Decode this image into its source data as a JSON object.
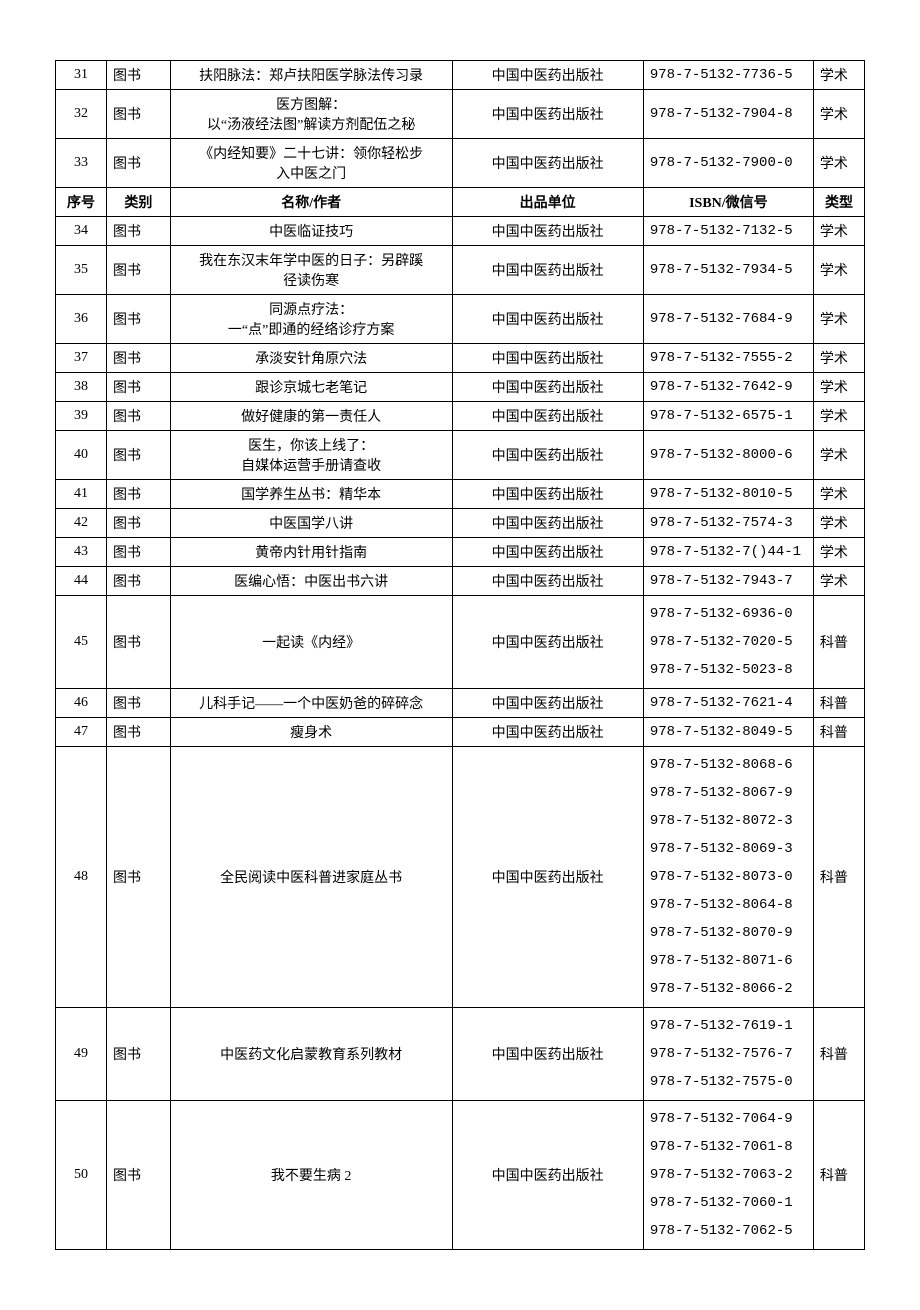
{
  "headers": {
    "seq": "序号",
    "category": "类别",
    "name": "名称/作者",
    "publisher": "出品单位",
    "isbn": "ISBN/微信号",
    "type": "类型"
  },
  "rows": [
    {
      "seq": "31",
      "category": "图书",
      "name": "扶阳脉法：郑卢扶阳医学脉法传习录",
      "publisher": "中国中医药出版社",
      "isbn": "978-7-5132-7736-5",
      "type": "学术"
    },
    {
      "seq": "32",
      "category": "图书",
      "name": "医方图解：\n以“汤液经法图”解读方剂配伍之秘",
      "publisher": "中国中医药出版社",
      "isbn": "978-7-5132-7904-8",
      "type": "学术"
    },
    {
      "seq": "33",
      "category": "图书",
      "name": "《内经知要》二十七讲：领你轻松步\n入中医之门",
      "publisher": "中国中医药出版社",
      "isbn": "978-7-5132-7900-0",
      "type": "学术"
    },
    {
      "header": true
    },
    {
      "seq": "34",
      "category": "图书",
      "name": "中医临证技巧",
      "publisher": "中国中医药出版社",
      "isbn": "978-7-5132-7132-5",
      "type": "学术"
    },
    {
      "seq": "35",
      "category": "图书",
      "name": "我在东汉末年学中医的日子：另辟蹊\n径读伤寒",
      "publisher": "中国中医药出版社",
      "isbn": "978-7-5132-7934-5",
      "type": "学术"
    },
    {
      "seq": "36",
      "category": "图书",
      "name": "同源点疗法：\n一“点”即通的经络诊疗方案",
      "publisher": "中国中医药出版社",
      "isbn": "978-7-5132-7684-9",
      "type": "学术"
    },
    {
      "seq": "37",
      "category": "图书",
      "name": "承淡安针角原穴法",
      "publisher": "中国中医药出版社",
      "isbn": "978-7-5132-7555-2",
      "type": "学术"
    },
    {
      "seq": "38",
      "category": "图书",
      "name": "跟诊京城七老笔记",
      "publisher": "中国中医药出版社",
      "isbn": "978-7-5132-7642-9",
      "type": "学术"
    },
    {
      "seq": "39",
      "category": "图书",
      "name": "做好健康的第一责任人",
      "publisher": "中国中医药出版社",
      "isbn": "978-7-5132-6575-1",
      "type": "学术"
    },
    {
      "seq": "40",
      "category": "图书",
      "name": "医生，你该上线了：\n自媒体运营手册请查收",
      "publisher": "中国中医药出版社",
      "isbn": "978-7-5132-8000-6",
      "type": "学术"
    },
    {
      "seq": "41",
      "category": "图书",
      "name": "国学养生丛书：精华本",
      "publisher": "中国中医药出版社",
      "isbn": "978-7-5132-8010-5",
      "type": "学术"
    },
    {
      "seq": "42",
      "category": "图书",
      "name": "中医国学八讲",
      "publisher": "中国中医药出版社",
      "isbn": "978-7-5132-7574-3",
      "type": "学术"
    },
    {
      "seq": "43",
      "category": "图书",
      "name": "黄帝内针用针指南",
      "publisher": "中国中医药出版社",
      "isbn": "978-7-5132-7()44-1",
      "type": "学术"
    },
    {
      "seq": "44",
      "category": "图书",
      "name": "医编心悟：中医出书六讲",
      "publisher": "中国中医药出版社",
      "isbn": "978-7-5132-7943-7",
      "type": "学术"
    },
    {
      "seq": "45",
      "category": "图书",
      "name": "一起读《内经》",
      "publisher": "中国中医药出版社",
      "isbn": "978-7-5132-6936-0\n978-7-5132-7020-5\n978-7-5132-5023-8",
      "type": "科普",
      "multiIsbn": true
    },
    {
      "seq": "46",
      "category": "图书",
      "name": "儿科手记——一个中医奶爸的碎碎念",
      "publisher": "中国中医药出版社",
      "isbn": "978-7-5132-7621-4",
      "type": "科普"
    },
    {
      "seq": "47",
      "category": "图书",
      "name": "瘦身术",
      "publisher": "中国中医药出版社",
      "isbn": "978-7-5132-8049-5",
      "type": "科普"
    },
    {
      "seq": "48",
      "category": "图书",
      "name": "全民阅读中医科普进家庭丛书",
      "publisher": "中国中医药出版社",
      "isbn": "978-7-5132-8068-6\n978-7-5132-8067-9\n978-7-5132-8072-3\n978-7-5132-8069-3\n978-7-5132-8073-0\n978-7-5132-8064-8\n978-7-5132-8070-9\n978-7-5132-8071-6\n978-7-5132-8066-2",
      "type": "科普",
      "multiIsbn": true
    },
    {
      "seq": "49",
      "category": "图书",
      "name": "中医药文化启蒙教育系列教材",
      "publisher": "中国中医药出版社",
      "isbn": "978-7-5132-7619-1\n978-7-5132-7576-7\n978-7-5132-7575-0",
      "type": "科普",
      "multiIsbn": true
    },
    {
      "seq": "50",
      "category": "图书",
      "name": "我不要生病 2",
      "publisher": "中国中医药出版社",
      "isbn": "978-7-5132-7064-9\n978-7-5132-7061-8\n978-7-5132-7063-2\n978-7-5132-7060-1\n978-7-5132-7062-5",
      "type": "科普",
      "multiIsbn": true
    }
  ]
}
